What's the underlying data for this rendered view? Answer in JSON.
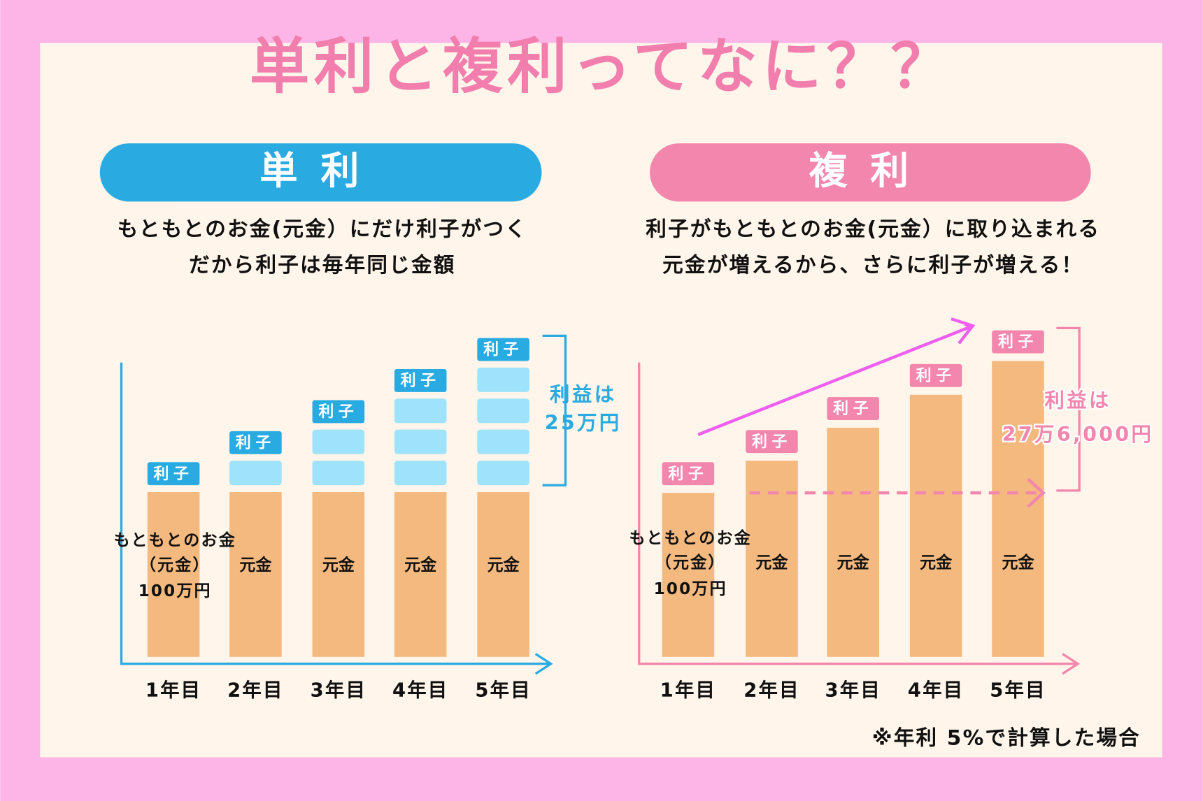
{
  "title": "単利と複利ってなに？？",
  "panels": [
    {
      "heading": "単利",
      "description": [
        "もともとのお金(元金）にだけ利子がつく",
        "だから利子は毎年同じ金額"
      ],
      "principal_label": [
        "もともとのお金",
        "（元金）",
        "100万円"
      ],
      "bar_label": "元金",
      "interest_label": "利子",
      "years": [
        "1年目",
        "2年目",
        "3年目",
        "4年目",
        "5年目"
      ],
      "profit_label": [
        "利益は",
        "25万円"
      ]
    },
    {
      "heading": "複利",
      "description": [
        "利子がもともとのお金(元金）に取り込まれる",
        "元金が増えるから、さらに利子が増える！"
      ],
      "principal_label": [
        "もともとのお金",
        "（元金）",
        "100万円"
      ],
      "bar_label": "元金",
      "interest_label": "利子",
      "years": [
        "1年目",
        "2年目",
        "3年目",
        "4年目",
        "5年目"
      ],
      "profit_label": [
        "利益は",
        "27万6,000円"
      ]
    }
  ],
  "footnote": "※年利 5%で計算した場合"
}
